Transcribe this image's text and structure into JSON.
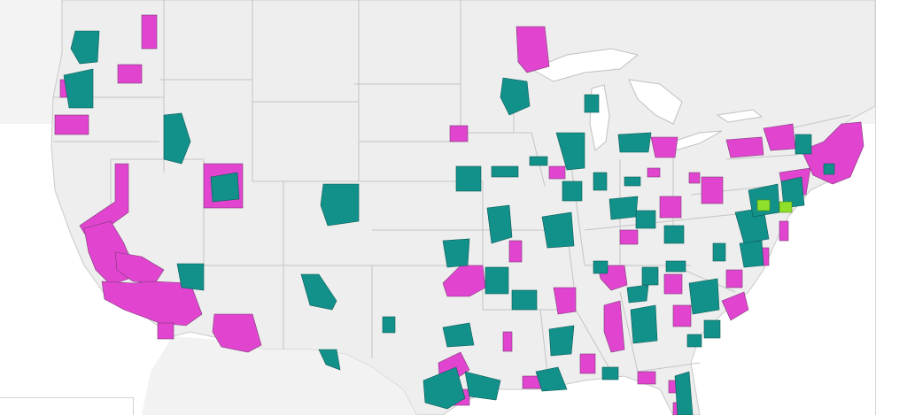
{
  "map": {
    "title": "",
    "colors": {
      "land": "#eeeeee",
      "canada": "#f3f3f3",
      "water": "#ffffff",
      "border": "#bcbcbc",
      "category_a": "#e145d0",
      "category_b": "#12918a",
      "category_c": "#8ee02a"
    },
    "legend": []
  }
}
